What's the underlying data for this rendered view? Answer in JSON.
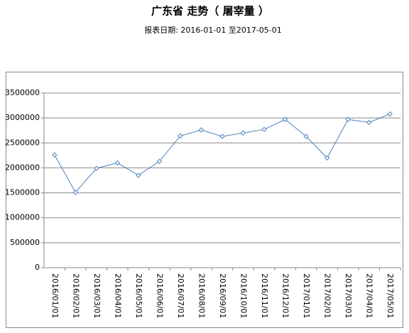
{
  "chart_data": {
    "type": "line",
    "title": "广东省 走势（ 屠宰量 ）",
    "subtitle": "报表日期: 2016-01-01 至2017-05-01",
    "categories": [
      "2016/01/01",
      "2016/02/01",
      "2016/03/01",
      "2016/04/01",
      "2016/05/01",
      "2016/06/01",
      "2016/07/01",
      "2016/08/01",
      "2016/09/01",
      "2016/10/01",
      "2016/11/01",
      "2016/12/01",
      "2017/01/01",
      "2017/02/01",
      "2017/03/01",
      "2017/04/01",
      "2017/05/01"
    ],
    "values": [
      2260000,
      1510000,
      1990000,
      2100000,
      1850000,
      2130000,
      2640000,
      2760000,
      2630000,
      2700000,
      2770000,
      2970000,
      2630000,
      2200000,
      2970000,
      2910000,
      3080000
    ],
    "color": "#4f81bd",
    "ylim": [
      0,
      3500000
    ],
    "yticks": [
      0,
      500000,
      1000000,
      1500000,
      2000000,
      2500000,
      3000000,
      3500000
    ],
    "grid": true
  }
}
